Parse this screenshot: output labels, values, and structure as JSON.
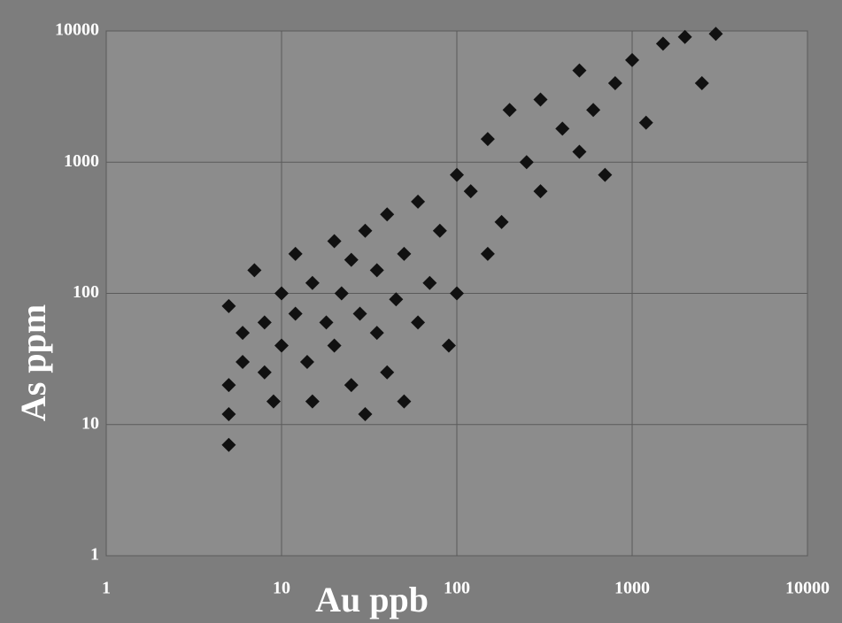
{
  "chart_data": {
    "type": "scatter",
    "x_label": "Au ppb",
    "y_label": "As ppm",
    "xscale": "log",
    "yscale": "log",
    "xlim": [
      1,
      10000
    ],
    "ylim": [
      1,
      10000
    ],
    "xticks": [
      1,
      10,
      100,
      1000,
      10000
    ],
    "yticks": [
      1,
      10,
      100,
      1000,
      10000
    ],
    "grid": true,
    "series": [
      {
        "color": "#111111",
        "x": [
          5,
          5,
          5,
          6,
          6,
          5,
          7,
          8,
          8,
          9,
          10,
          10,
          12,
          12,
          14,
          15,
          15,
          18,
          20,
          20,
          22,
          25,
          25,
          28,
          30,
          30,
          35,
          35,
          40,
          40,
          45,
          50,
          50,
          60,
          60,
          70,
          80,
          90,
          100,
          100,
          120,
          150,
          150,
          180,
          200,
          250,
          300,
          300,
          400,
          500,
          500,
          600,
          700,
          800,
          1000,
          1200,
          1500,
          2000,
          2500,
          3000
        ],
        "values": [
          7,
          12,
          20,
          30,
          50,
          80,
          150,
          60,
          25,
          15,
          40,
          100,
          200,
          70,
          30,
          15,
          120,
          60,
          250,
          40,
          100,
          20,
          180,
          70,
          300,
          12,
          150,
          50,
          25,
          400,
          90,
          200,
          15,
          60,
          500,
          120,
          300,
          40,
          100,
          800,
          600,
          1500,
          200,
          350,
          2500,
          1000,
          3000,
          600,
          1800,
          5000,
          1200,
          2500,
          800,
          4000,
          6000,
          2000,
          8000,
          9000,
          4000,
          9500
        ]
      }
    ]
  }
}
